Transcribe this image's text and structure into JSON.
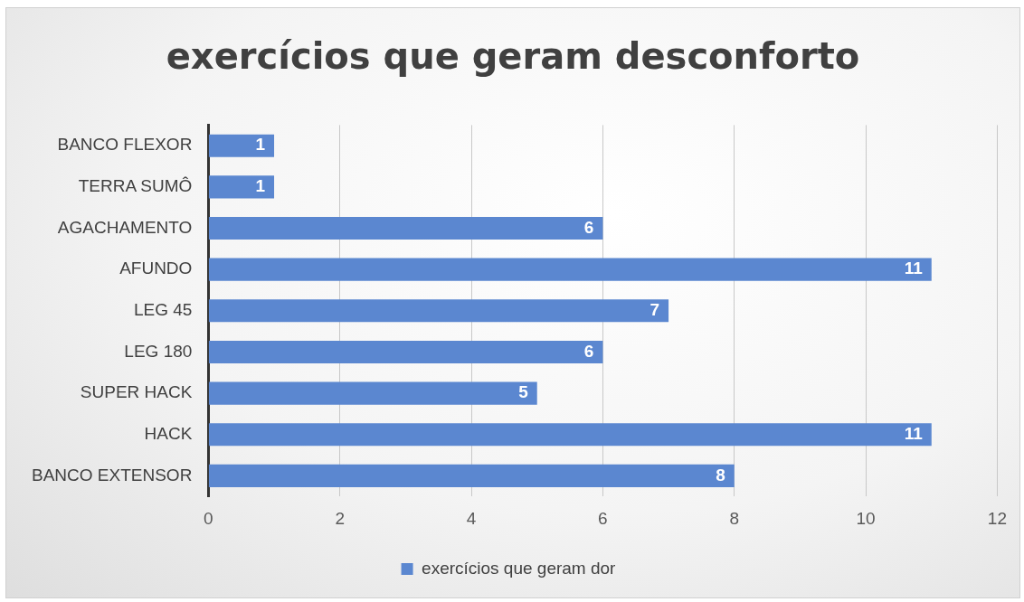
{
  "chart_data": {
    "type": "bar",
    "orientation": "horizontal",
    "title": "exercícios que geram desconforto",
    "categories": [
      "BANCO FLEXOR",
      "TERRA SUMÔ",
      "AGACHAMENTO",
      "AFUNDO",
      "LEG 45",
      "LEG 180",
      "SUPER HACK",
      "HACK",
      "BANCO EXTENSOR"
    ],
    "series": [
      {
        "name": "exercícios que geram dor",
        "color": "#5b87d0",
        "values": [
          1,
          1,
          6,
          11,
          7,
          6,
          5,
          11,
          8
        ]
      }
    ],
    "xlim": [
      0,
      12
    ],
    "xticks": [
      0,
      2,
      4,
      6,
      8,
      10,
      12
    ],
    "grid": "x",
    "legend": "bottom",
    "data_labels": true
  }
}
